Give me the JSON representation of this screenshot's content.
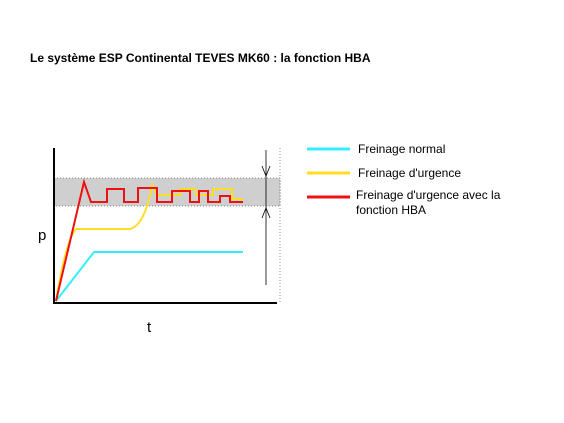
{
  "title": "Le système ESP Continental TEVES MK60 : la fonction HBA",
  "axes": {
    "y": "p",
    "x": "t"
  },
  "legend": [
    {
      "label": "Freinage normal",
      "color": "#33eeff"
    },
    {
      "label": "Freinage d'urgence",
      "color": "#ffdd22"
    },
    {
      "label": "Freinage d'urgence avec la fonction HBA",
      "color": "#ee1111"
    }
  ]
}
